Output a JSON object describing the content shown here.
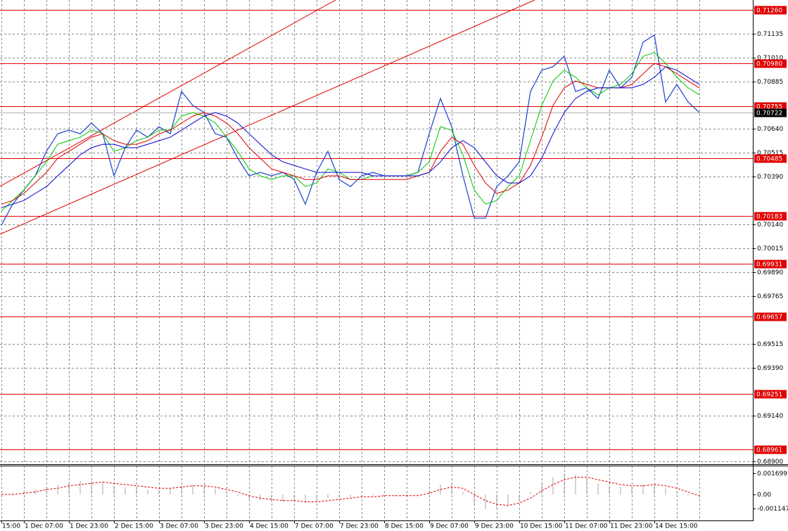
{
  "chart_data": [
    {
      "type": "line",
      "categories": [
        "15:00",
        null,
        "1 Dec 07:00",
        null,
        null,
        null,
        "1 Dec 23:00",
        null,
        null,
        null,
        "2 Dec 15:00",
        null,
        null,
        null,
        "3 Dec 07:00",
        null,
        null,
        null,
        "3 Dec 23:00",
        null,
        null,
        null,
        "4 Dec 15:00",
        null,
        null,
        null,
        "7 Dec 07:00",
        null,
        null,
        null,
        "7 Dec 23:00",
        null,
        null,
        null,
        "8 Dec 15:00",
        null,
        null,
        null,
        "9 Dec 07:00",
        null,
        null,
        null,
        "9 Dec 23:00",
        null,
        null,
        null,
        "10 Dec 15:00",
        null,
        null,
        null,
        "11 Dec 07:00",
        null,
        null,
        null,
        "11 Dec 23:00",
        null,
        null,
        null,
        "14 Dec 15:00",
        null,
        null,
        null,
        null
      ],
      "series": [
        {
          "color": "#2a4fd0",
          "values": [
            0.70134,
            0.70244,
            0.70318,
            0.70392,
            0.7052,
            0.70612,
            0.70631,
            0.70612,
            0.70668,
            0.70612,
            0.70392,
            0.70539,
            0.70631,
            0.70594,
            0.70649,
            0.70612,
            0.70833,
            0.7076,
            0.70723,
            0.70612,
            0.70594,
            0.70484,
            0.70392,
            0.7041,
            0.70392,
            0.7041,
            0.70373,
            0.70244,
            0.7041,
            0.7052,
            0.70373,
            0.70336,
            0.70392,
            0.7041,
            0.70392,
            0.70392,
            0.70392,
            0.7041,
            0.70612,
            0.70796,
            0.70649,
            0.70392,
            0.70171,
            0.70171,
            0.70336,
            0.70392,
            0.70465,
            0.70833,
            0.70944,
            0.70962,
            0.71017,
            0.70833,
            0.70852,
            0.70796,
            0.70944,
            0.70852,
            0.70907,
            0.71091,
            0.71128,
            0.70778,
            0.7087,
            0.70778,
            0.70723
          ]
        },
        {
          "color": "#00c800",
          "values": [
            0.70208,
            0.70263,
            0.70318,
            0.70392,
            0.70465,
            0.70557,
            0.70576,
            0.70594,
            0.70631,
            0.70612,
            0.7052,
            0.70539,
            0.70576,
            0.70594,
            0.70631,
            0.70631,
            0.70704,
            0.70723,
            0.70704,
            0.70668,
            0.70594,
            0.7052,
            0.70428,
            0.70392,
            0.70373,
            0.70392,
            0.70392,
            0.70336,
            0.70355,
            0.70428,
            0.7041,
            0.70373,
            0.70373,
            0.70392,
            0.70392,
            0.70392,
            0.70392,
            0.7041,
            0.70465,
            0.70649,
            0.70631,
            0.70502,
            0.70318,
            0.70244,
            0.70263,
            0.70336,
            0.70392,
            0.70576,
            0.7076,
            0.70888,
            0.70944,
            0.70907,
            0.70852,
            0.70815,
            0.70852,
            0.7087,
            0.70925,
            0.71017,
            0.71036,
            0.7098,
            0.70907,
            0.70852,
            0.70815
          ]
        },
        {
          "color": "#dd0000",
          "values": [
            0.70244,
            0.70263,
            0.703,
            0.70355,
            0.7041,
            0.70484,
            0.7052,
            0.70557,
            0.70594,
            0.70612,
            0.70576,
            0.70557,
            0.70557,
            0.70576,
            0.70612,
            0.70631,
            0.70668,
            0.70704,
            0.70723,
            0.70704,
            0.70668,
            0.70612,
            0.70539,
            0.70484,
            0.70428,
            0.7041,
            0.70392,
            0.70373,
            0.70373,
            0.70392,
            0.70392,
            0.70373,
            0.70373,
            0.70373,
            0.70373,
            0.70373,
            0.70373,
            0.70392,
            0.7041,
            0.7052,
            0.70594,
            0.70557,
            0.70447,
            0.70355,
            0.703,
            0.70318,
            0.70355,
            0.70447,
            0.70594,
            0.7076,
            0.70852,
            0.70888,
            0.7087,
            0.70852,
            0.70852,
            0.70852,
            0.7087,
            0.70925,
            0.7098,
            0.70962,
            0.70925,
            0.70888,
            0.70852
          ]
        },
        {
          "color": "#0000cc",
          "values": [
            0.70226,
            0.70244,
            0.70263,
            0.703,
            0.70336,
            0.70392,
            0.70447,
            0.70502,
            0.70539,
            0.70557,
            0.70557,
            0.70539,
            0.70539,
            0.70557,
            0.70576,
            0.70594,
            0.70631,
            0.70668,
            0.70704,
            0.70723,
            0.70704,
            0.70668,
            0.70612,
            0.70557,
            0.70502,
            0.70465,
            0.70447,
            0.70428,
            0.7041,
            0.7041,
            0.7041,
            0.7041,
            0.7041,
            0.70392,
            0.70392,
            0.70392,
            0.70392,
            0.70392,
            0.7041,
            0.70465,
            0.70539,
            0.70576,
            0.70539,
            0.70465,
            0.70392,
            0.70355,
            0.70355,
            0.70392,
            0.70484,
            0.70612,
            0.70723,
            0.70796,
            0.70833,
            0.70852,
            0.70852,
            0.70852,
            0.70852,
            0.7087,
            0.70907,
            0.70962,
            0.70944,
            0.70907,
            0.7087
          ]
        }
      ],
      "ylim": [
        0.68885,
        0.71311
      ],
      "yticks": [
        0.71135,
        {
          "value": 0.7101,
          "label": "0.71010"
        },
        0.70885,
        {
          "value": 0.7064,
          "label": "0.70640"
        },
        0.70515,
        {
          "value": 0.7039,
          "label": "0.70390"
        },
        {
          "value": 0.7014,
          "label": "0.70140"
        },
        0.70015,
        {
          "value": 0.6989,
          "label": "0.69890"
        },
        0.69765,
        0.69515,
        {
          "value": 0.6939,
          "label": "0.69390"
        },
        {
          "value": 0.6914,
          "label": "0.69140"
        },
        {
          "value": 0.689,
          "label": "0.68900"
        }
      ],
      "levels": [
        {
          "value": 0.7126,
          "label": "0.71260"
        },
        {
          "value": 0.7098,
          "label": "0.70980"
        },
        0.70755,
        0.70485,
        0.70183,
        0.69931,
        0.69657,
        0.69251,
        0.68961
      ],
      "level_color": "#e00000",
      "last_price": 0.70722,
      "grid": true
    },
    {
      "type": "bar",
      "series": [
        {
          "color": "#a8a8a8",
          "values": [
            0.0,
            0.0001,
            0.0002,
            0.0004,
            0.0006,
            0.0008,
            0.001,
            0.0011,
            0.0011,
            0.001,
            0.0007,
            0.0006,
            0.0005,
            0.0004,
            0.0004,
            0.0005,
            0.0007,
            0.0008,
            0.0007,
            0.0005,
            0.0002,
            -0.0001,
            -0.0004,
            -0.0005,
            -0.0006,
            -0.0006,
            -0.0006,
            -0.0007,
            -0.0005,
            -0.0003,
            -0.0002,
            -0.0002,
            -0.0002,
            -0.0001,
            -0.0001,
            -0.0001,
            -0.0001,
            0.0,
            0.0003,
            0.0008,
            0.0009,
            0.0002,
            -0.0008,
            -0.0012,
            -0.0011,
            -0.0009,
            -0.0005,
            0.0002,
            0.0009,
            0.0014,
            0.0017,
            0.0016,
            0.0013,
            0.0009,
            0.0007,
            0.0006,
            0.0006,
            0.0008,
            0.0009,
            0.0005,
            0.0002,
            -0.0001,
            -0.0003
          ]
        },
        {
          "type": "line",
          "color": "#e00000",
          "values": [
            0.0,
            0.0,
            0.0001,
            0.0002,
            0.0004,
            0.0005,
            0.0007,
            0.0008,
            0.0009,
            0.001,
            0.0009,
            0.0008,
            0.0007,
            0.0006,
            0.0005,
            0.0005,
            0.0006,
            0.0007,
            0.0007,
            0.0006,
            0.0004,
            0.0002,
            -0.0001,
            -0.0003,
            -0.0004,
            -0.0005,
            -0.0005,
            -0.0006,
            -0.0006,
            -0.0005,
            -0.0004,
            -0.0003,
            -0.0002,
            -0.0002,
            -0.0001,
            -0.0001,
            -0.0001,
            -0.0001,
            0.0001,
            0.0004,
            0.0006,
            0.0005,
            0.0,
            -0.0005,
            -0.0008,
            -0.0009,
            -0.0007,
            -0.0003,
            0.0003,
            0.0008,
            0.0012,
            0.0014,
            0.0014,
            0.0012,
            0.001,
            0.0008,
            0.0007,
            0.0007,
            0.0008,
            0.0007,
            0.0005,
            0.0002,
            -0.0001
          ]
        }
      ],
      "ylim": [
        -0.00211,
        0.00234
      ],
      "yticks": [
        0.001699,
        {
          "value": 0,
          "label": "0.00"
        },
        -0.001147
      ]
    }
  ]
}
